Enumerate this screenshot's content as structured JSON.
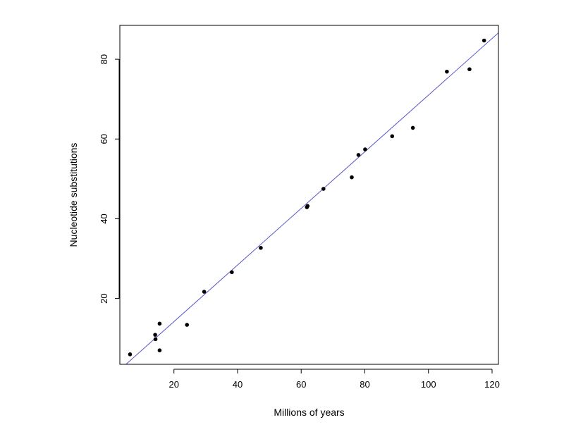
{
  "chart_data": {
    "type": "scatter",
    "title": "",
    "xlabel": "Millions of years",
    "ylabel": "Nucleotide substitutions",
    "xlim": [
      3,
      122
    ],
    "ylim": [
      3.5,
      88.5
    ],
    "x_ticks": [
      20,
      40,
      60,
      80,
      100,
      120
    ],
    "y_ticks": [
      20,
      40,
      60,
      80
    ],
    "grid": false,
    "legend": "none",
    "point_color": "#000000",
    "line_color": "#5555cc",
    "series": [
      {
        "points": [
          [
            6.2,
            6.0
          ],
          [
            14.1,
            10.9
          ],
          [
            14.2,
            9.8
          ],
          [
            15.5,
            13.7
          ],
          [
            15.5,
            7.0
          ],
          [
            24.1,
            13.4
          ],
          [
            29.5,
            21.7
          ],
          [
            38.2,
            26.6
          ],
          [
            47.3,
            32.7
          ],
          [
            61.8,
            42.9
          ],
          [
            62.0,
            43.2
          ],
          [
            67.0,
            47.5
          ],
          [
            75.9,
            50.4
          ],
          [
            78.0,
            56.0
          ],
          [
            80.1,
            57.4
          ],
          [
            88.6,
            60.7
          ],
          [
            95.1,
            62.8
          ],
          [
            105.8,
            76.9
          ],
          [
            112.9,
            77.5
          ],
          [
            117.5,
            84.7
          ]
        ]
      }
    ],
    "fit_line": {
      "slope": 0.71,
      "intercept": 0.0
    }
  }
}
